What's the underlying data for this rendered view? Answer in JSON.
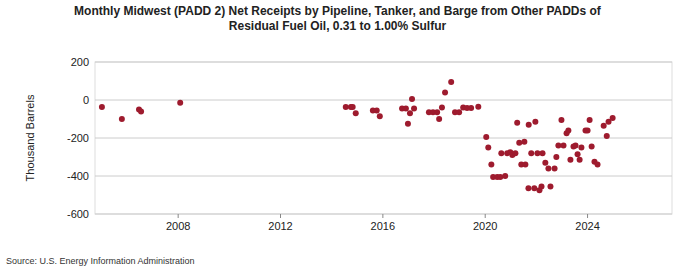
{
  "chart_data": {
    "type": "scatter",
    "title": [
      "Monthly Midwest (PADD 2) Net Receipts by Pipeline, Tanker, and Barge from Other PADDs of",
      "Residual Fuel Oil, 0.31 to 1.00% Sulfur"
    ],
    "y_label": "Thousand Barrels",
    "source": "Source: U.S. Energy Information Administration",
    "color": "#9e1b2e",
    "marker": "circle",
    "grid": true,
    "xlim": [
      2004.75,
      2027.3
    ],
    "xticks": [
      2008,
      2012,
      2016,
      2020,
      2024
    ],
    "ylim": [
      -600,
      200
    ],
    "yticks": [
      -600,
      -400,
      -200,
      0,
      200
    ],
    "x": [
      2005.02,
      2005.8,
      2006.47,
      2006.55,
      2008.08,
      2014.55,
      2014.75,
      2014.82,
      2014.94,
      2015.61,
      2015.76,
      2015.88,
      2016.75,
      2016.9,
      2016.98,
      2017.06,
      2017.14,
      2017.22,
      2017.8,
      2017.96,
      2018.12,
      2018.2,
      2018.31,
      2018.43,
      2018.67,
      2018.82,
      2018.98,
      2019.14,
      2019.29,
      2019.45,
      2019.73,
      2020.04,
      2020.12,
      2020.24,
      2020.31,
      2020.47,
      2020.59,
      2020.63,
      2020.78,
      2020.86,
      2020.98,
      2021.06,
      2021.18,
      2021.25,
      2021.33,
      2021.41,
      2021.53,
      2021.57,
      2021.69,
      2021.7,
      2021.8,
      2021.92,
      2021.96,
      2022.04,
      2022.12,
      2022.2,
      2022.24,
      2022.35,
      2022.47,
      2022.55,
      2022.71,
      2022.78,
      2022.86,
      2022.98,
      2023.06,
      2023.18,
      2023.25,
      2023.33,
      2023.45,
      2023.53,
      2023.61,
      2023.69,
      2023.76,
      2023.92,
      2024.0,
      2024.08,
      2024.16,
      2024.27,
      2024.39,
      2024.63,
      2024.75,
      2024.82,
      2024.98
    ],
    "values": [
      -37,
      -100,
      -50,
      -60,
      -15,
      -37,
      -37,
      -37,
      -70,
      -55,
      -55,
      -85,
      -45,
      -45,
      -125,
      -70,
      5,
      -45,
      -65,
      -65,
      -65,
      -100,
      -40,
      40,
      95,
      -65,
      -65,
      -40,
      -42,
      -42,
      -35,
      -195,
      -250,
      -340,
      -405,
      -405,
      -405,
      -280,
      -400,
      -280,
      -275,
      -290,
      -280,
      -120,
      -225,
      -340,
      -220,
      -340,
      -465,
      -130,
      -280,
      -465,
      -115,
      -280,
      -475,
      -455,
      -280,
      -330,
      -360,
      -455,
      -360,
      -300,
      -240,
      -105,
      -240,
      -175,
      -160,
      -315,
      -245,
      -240,
      -285,
      -315,
      -250,
      -160,
      -160,
      -105,
      -245,
      -325,
      -340,
      -135,
      -190,
      -115,
      -95
    ]
  }
}
